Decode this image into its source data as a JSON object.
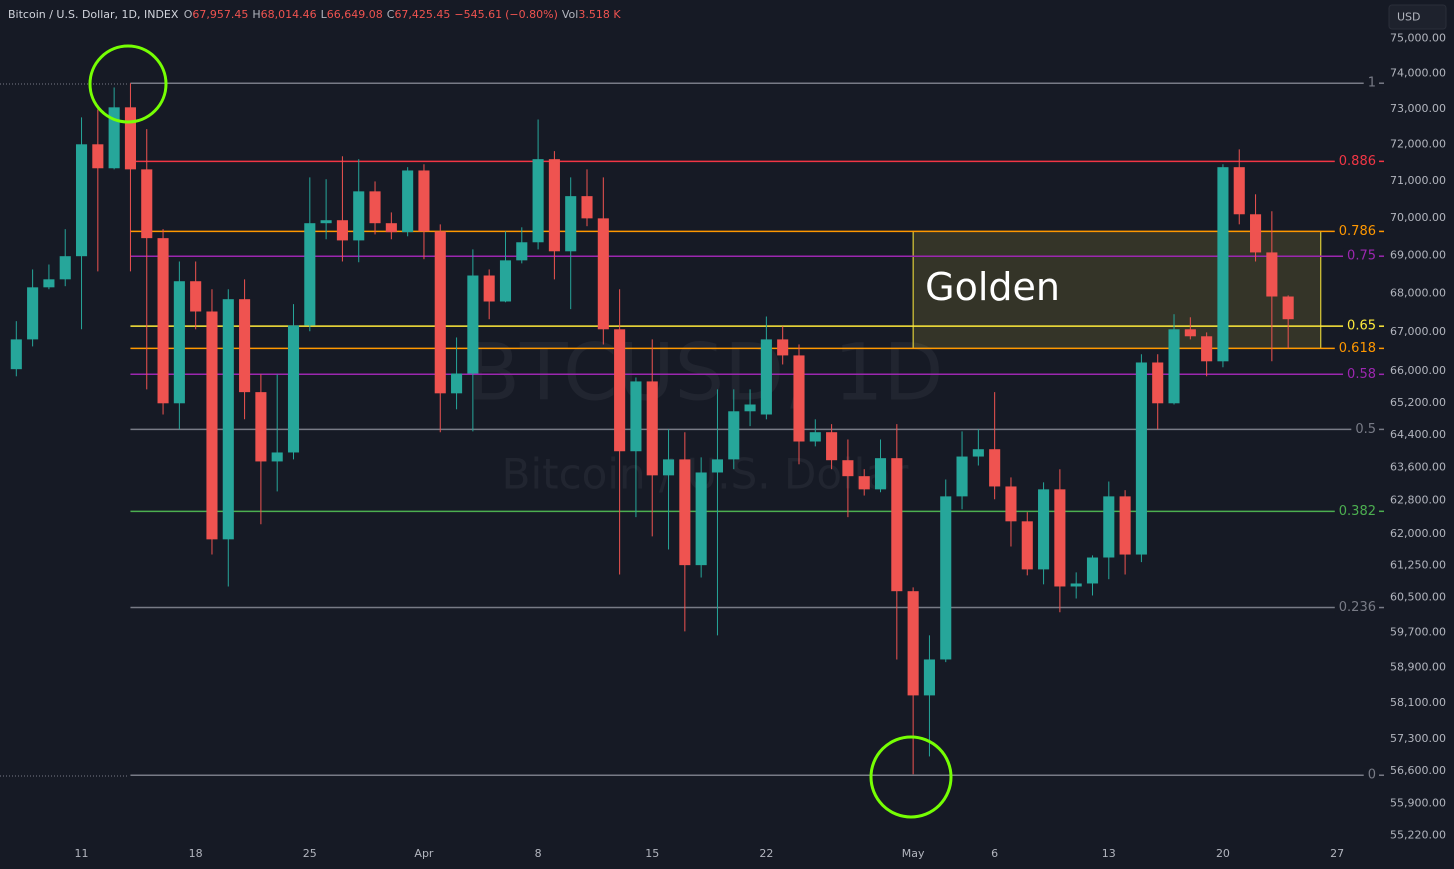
{
  "chart_data": {
    "type": "candlestick",
    "header": {
      "symbol": "Bitcoin / U.S. Dollar, 1D, INDEX",
      "quote": [
        {
          "key": "O",
          "value": 67957.45,
          "label": "67,957.45"
        },
        {
          "key": "H",
          "value": 68014.46,
          "label": "68,014.46"
        },
        {
          "key": "L",
          "value": 66649.08,
          "label": "66,649.08"
        },
        {
          "key": "C",
          "value": 67425.45,
          "label": "67,425.45"
        }
      ],
      "change": {
        "value": -545.61,
        "label": "−545.61"
      },
      "change_pct": {
        "value": -0.8,
        "label": "(−0.80%)"
      },
      "volume": {
        "key": "Vol",
        "value": 3518,
        "label": "3.518 K"
      }
    },
    "currency": "USD",
    "watermark": {
      "title": "BTCUSD, 1D",
      "subtitle": "Bitcoin / U.S. Dollar"
    },
    "log_scale": true,
    "grid": false,
    "up_color": "#26a69a",
    "down_color": "#ef5350",
    "xlim": [
      "Mar 6",
      "May 30"
    ],
    "ylim": [
      54500,
      76100
    ],
    "xticks": [
      {
        "value": "Mar 11",
        "label": "11"
      },
      {
        "value": "Mar 18",
        "label": "18"
      },
      {
        "value": "Mar 25",
        "label": "25"
      },
      {
        "value": "Apr 1",
        "label": "Apr"
      },
      {
        "value": "Apr 8",
        "label": "8"
      },
      {
        "value": "Apr 15",
        "label": "15"
      },
      {
        "value": "Apr 22",
        "label": "22"
      },
      {
        "value": "May 1",
        "label": "May"
      },
      {
        "value": "May 6",
        "label": "6"
      },
      {
        "value": "May 13",
        "label": "13"
      },
      {
        "value": "May 20",
        "label": "20"
      },
      {
        "value": "May 27",
        "label": "27"
      }
    ],
    "yticks": [
      {
        "value": 75000,
        "label": "75,000.00"
      },
      {
        "value": 74000,
        "label": "74,000.00"
      },
      {
        "value": 73000,
        "label": "73,000.00"
      },
      {
        "value": 72000,
        "label": "72,000.00"
      },
      {
        "value": 71000,
        "label": "71,000.00"
      },
      {
        "value": 70000,
        "label": "70,000.00"
      },
      {
        "value": 69000,
        "label": "69,000.00"
      },
      {
        "value": 68000,
        "label": "68,000.00"
      },
      {
        "value": 67000,
        "label": "67,000.00"
      },
      {
        "value": 66000,
        "label": "66,000.00"
      },
      {
        "value": 65200,
        "label": "65,200.00"
      },
      {
        "value": 64400,
        "label": "64,400.00"
      },
      {
        "value": 63600,
        "label": "63,600.00"
      },
      {
        "value": 62800,
        "label": "62,800.00"
      },
      {
        "value": 62000,
        "label": "62,000.00"
      },
      {
        "value": 61250,
        "label": "61,250.00"
      },
      {
        "value": 60500,
        "label": "60,500.00"
      },
      {
        "value": 59700,
        "label": "59,700.00"
      },
      {
        "value": 58900,
        "label": "58,900.00"
      },
      {
        "value": 58100,
        "label": "58,100.00"
      },
      {
        "value": 57300,
        "label": "57,300.00"
      },
      {
        "value": 56600,
        "label": "56,600.00"
      },
      {
        "value": 55900,
        "label": "55,900.00"
      },
      {
        "value": 55220,
        "label": "55,220.00"
      }
    ],
    "x": [
      "Mar 7",
      "Mar 8",
      "Mar 9",
      "Mar 10",
      "Mar 11",
      "Mar 12",
      "Mar 13",
      "Mar 14",
      "Mar 15",
      "Mar 16",
      "Mar 17",
      "Mar 18",
      "Mar 19",
      "Mar 20",
      "Mar 21",
      "Mar 22",
      "Mar 23",
      "Mar 24",
      "Mar 25",
      "Mar 26",
      "Mar 27",
      "Mar 28",
      "Mar 29",
      "Mar 30",
      "Mar 31",
      "Apr 1",
      "Apr 2",
      "Apr 3",
      "Apr 4",
      "Apr 5",
      "Apr 6",
      "Apr 7",
      "Apr 8",
      "Apr 9",
      "Apr 10",
      "Apr 11",
      "Apr 12",
      "Apr 13",
      "Apr 14",
      "Apr 15",
      "Apr 16",
      "Apr 17",
      "Apr 18",
      "Apr 19",
      "Apr 20",
      "Apr 21",
      "Apr 22",
      "Apr 23",
      "Apr 24",
      "Apr 25",
      "Apr 26",
      "Apr 27",
      "Apr 28",
      "Apr 29",
      "Apr 30",
      "May 1",
      "May 2",
      "May 3",
      "May 4",
      "May 5",
      "May 6",
      "May 7",
      "May 8",
      "May 9",
      "May 10",
      "May 11",
      "May 12",
      "May 13",
      "May 14",
      "May 15",
      "May 16",
      "May 17",
      "May 18",
      "May 19",
      "May 20",
      "May 21",
      "May 22",
      "May 23",
      "May 24"
    ],
    "open": [
      66050,
      66810,
      68160,
      68370,
      68980,
      72010,
      71350,
      73040,
      71320,
      69460,
      65190,
      68320,
      67530,
      61870,
      67850,
      65470,
      63750,
      63970,
      67170,
      69860,
      69940,
      69400,
      70720,
      69860,
      69620,
      71290,
      69640,
      65440,
      65940,
      68470,
      67790,
      68870,
      69350,
      71600,
      69110,
      70590,
      69990,
      67070,
      64000,
      65740,
      63410,
      63800,
      61260,
      63480,
      63800,
      64990,
      64910,
      66810,
      66400,
      64240,
      64470,
      63780,
      63390,
      63070,
      63830,
      60650,
      58270,
      59080,
      62900,
      63870,
      64050,
      63140,
      62300,
      61160,
      63070,
      60760,
      60830,
      61440,
      62900,
      61510,
      66220,
      65190,
      67070,
      66890,
      66250,
      71380,
      70100,
      69080,
      67920
    ],
    "high": [
      67280,
      68630,
      68760,
      69700,
      72760,
      72980,
      73600,
      73720,
      72430,
      69700,
      68840,
      68840,
      68110,
      68110,
      68370,
      65920,
      65920,
      67720,
      71100,
      71050,
      71680,
      71600,
      70990,
      70150,
      71380,
      71460,
      69830,
      66860,
      69160,
      68630,
      69640,
      69750,
      72700,
      71820,
      71100,
      71320,
      71100,
      68110,
      65840,
      66810,
      64540,
      64470,
      63850,
      65540,
      65540,
      65540,
      67400,
      67150,
      66680,
      64790,
      64670,
      64290,
      63560,
      64290,
      64670,
      60740,
      59630,
      63310,
      64490,
      64540,
      65470,
      63360,
      62520,
      63240,
      63560,
      61090,
      61490,
      63260,
      63050,
      66430,
      66430,
      67460,
      67380,
      66990,
      71460,
      71870,
      70640,
      70180,
      67950
    ],
    "low": [
      65870,
      66630,
      68110,
      68190,
      67070,
      68580,
      71320,
      68580,
      65540,
      64910,
      64540,
      67070,
      61510,
      60760,
      64790,
      62230,
      63020,
      63800,
      67020,
      69430,
      68840,
      68820,
      69560,
      69430,
      69510,
      68900,
      64470,
      65040,
      64490,
      67330,
      67770,
      68790,
      69160,
      68370,
      67590,
      69780,
      66680,
      61040,
      62400,
      61940,
      61630,
      59720,
      60970,
      59630,
      63560,
      64620,
      64790,
      66170,
      63680,
      64120,
      63560,
      62400,
      62920,
      63000,
      59080,
      56530,
      56920,
      59020,
      62590,
      63650,
      62830,
      61700,
      61020,
      60810,
      60160,
      60480,
      60550,
      60930,
      61040,
      61330,
      64540,
      65160,
      66810,
      65870,
      66100,
      69830,
      68840,
      66250,
      66580
    ],
    "close": [
      66810,
      68160,
      68370,
      68980,
      72010,
      71350,
      73040,
      71320,
      69460,
      65190,
      68320,
      67530,
      61870,
      67850,
      65470,
      63750,
      63970,
      67170,
      69860,
      69940,
      69400,
      70720,
      69860,
      69620,
      71290,
      69640,
      65440,
      65940,
      68470,
      67790,
      68870,
      69350,
      71600,
      69110,
      70590,
      69990,
      67070,
      64000,
      65740,
      63410,
      63800,
      61260,
      63480,
      63800,
      64990,
      65160,
      66810,
      66400,
      64240,
      64470,
      63780,
      63390,
      63070,
      63830,
      60650,
      58270,
      59080,
      62900,
      63870,
      64050,
      63140,
      62300,
      61160,
      63070,
      60760,
      60830,
      61440,
      62900,
      61510,
      66220,
      65190,
      67070,
      66890,
      66250,
      71380,
      70100,
      69080,
      67920,
      67330
    ],
    "fib": {
      "x0": "Mar 14",
      "levels": [
        {
          "ratio": 1,
          "price": 73720,
          "color": "#787b86"
        },
        {
          "ratio": 0.886,
          "price": 71540,
          "color": "#f23645"
        },
        {
          "ratio": 0.786,
          "price": 69640,
          "color": "#ff9800"
        },
        {
          "ratio": 0.75,
          "price": 68980,
          "color": "#9c27b0"
        },
        {
          "ratio": 0.65,
          "price": 67150,
          "color": "#ffeb3b"
        },
        {
          "ratio": 0.618,
          "price": 66580,
          "color": "#ff9800"
        },
        {
          "ratio": 0.58,
          "price": 65920,
          "color": "#9c27b0"
        },
        {
          "ratio": 0.5,
          "price": 64540,
          "color": "#787b86"
        },
        {
          "ratio": 0.382,
          "price": 62540,
          "color": "#4caf50"
        },
        {
          "ratio": 0.236,
          "price": 60270,
          "color": "#787b86"
        },
        {
          "ratio": 0,
          "price": 56510,
          "color": "#787b86"
        }
      ]
    },
    "box": {
      "label": "Golden",
      "x0": "May 1",
      "x1": "May 26",
      "top": 69640,
      "bottom": 66580,
      "color": "#ffeb3b"
    }
  }
}
